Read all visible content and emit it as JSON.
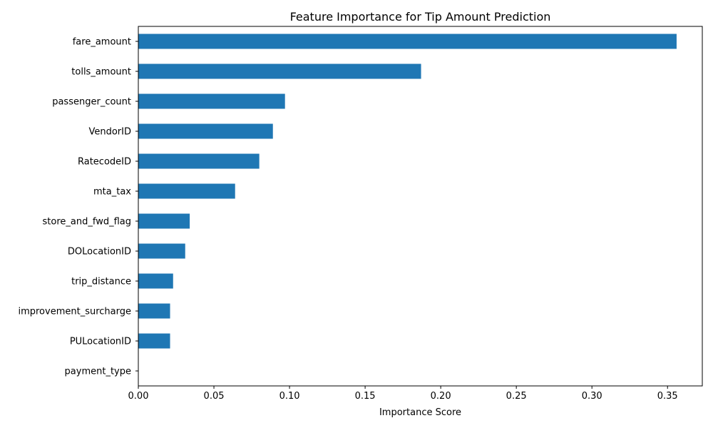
{
  "chart_data": {
    "type": "bar",
    "orientation": "horizontal",
    "title": "Feature Importance for Tip Amount Prediction",
    "xlabel": "Importance Score",
    "ylabel": "",
    "categories": [
      "fare_amount",
      "tolls_amount",
      "passenger_count",
      "VendorID",
      "RatecodeID",
      "mta_tax",
      "store_and_fwd_flag",
      "DOLocationID",
      "trip_distance",
      "improvement_surcharge",
      "PULocationID",
      "payment_type"
    ],
    "values": [
      0.356,
      0.187,
      0.097,
      0.089,
      0.08,
      0.064,
      0.034,
      0.031,
      0.023,
      0.021,
      0.021,
      0.0
    ],
    "xlim": [
      0.0,
      0.373
    ],
    "xticks": [
      0.0,
      0.05,
      0.1,
      0.15,
      0.2,
      0.25,
      0.3,
      0.35
    ],
    "xtick_labels": [
      "0.00",
      "0.05",
      "0.10",
      "0.15",
      "0.20",
      "0.25",
      "0.30",
      "0.35"
    ],
    "grid": false,
    "legend": "none",
    "bar_color": "#1f77b4"
  }
}
